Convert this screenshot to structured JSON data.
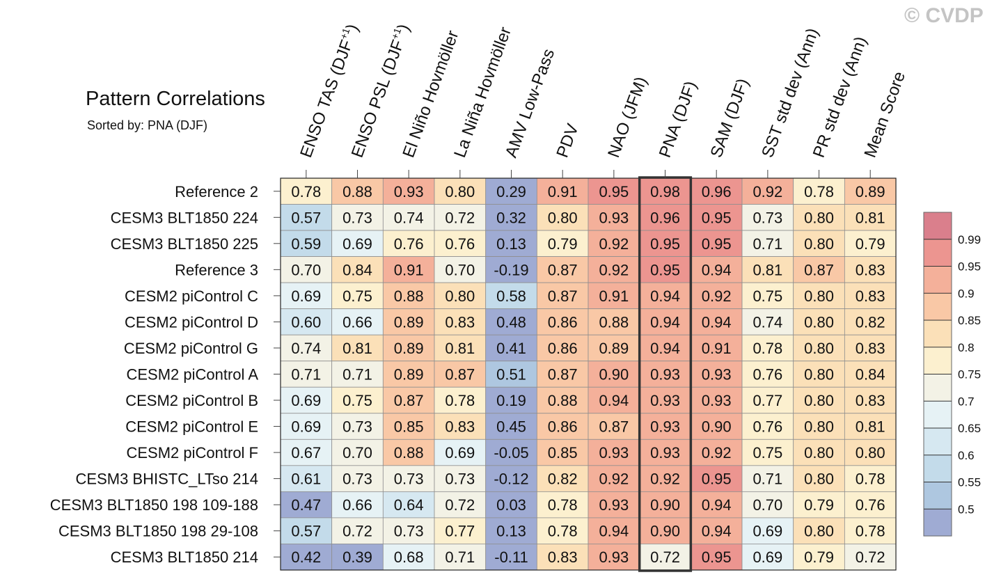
{
  "title": "Pattern Correlations",
  "subtitle": "Sorted by: PNA (DJF)",
  "watermark": "© CVDP",
  "chart_data": {
    "type": "heatmap",
    "title": "Pattern Correlations",
    "sorted_by": "PNA (DJF)",
    "highlight_column": "PNA (DJF)",
    "columns": [
      {
        "label": "ENSO TAS (DJF",
        "sup": "+1",
        "suffix": ")"
      },
      {
        "label": "ENSO PSL (DJF",
        "sup": "+1",
        "suffix": ")"
      },
      {
        "label": "El Niño Hovmöller"
      },
      {
        "label": "La Niña Hovmöller"
      },
      {
        "label": "AMV Low-Pass"
      },
      {
        "label": "PDV"
      },
      {
        "label": "NAO (JFM)"
      },
      {
        "label": "PNA (DJF)"
      },
      {
        "label": "SAM (DJF)"
      },
      {
        "label": "SST std dev (Ann)"
      },
      {
        "label": "PR std dev (Ann)"
      },
      {
        "label": "Mean Score"
      }
    ],
    "rows": [
      "Reference 2",
      "CESM3 BLT1850 224",
      "CESM3 BLT1850 225",
      "Reference 3",
      "CESM2 piControl C",
      "CESM2 piControl D",
      "CESM2 piControl G",
      "CESM2 piControl A",
      "CESM2 piControl B",
      "CESM2 piControl E",
      "CESM2 piControl F",
      "CESM3 BHISTC_LTso 214",
      "CESM3 BLT1850 198 109-188",
      "CESM3 BLT1850 198 29-108",
      "CESM3 BLT1850 214"
    ],
    "values": [
      [
        "0.78",
        "0.88",
        "0.93",
        "0.80",
        "0.29",
        "0.91",
        "0.95",
        "0.98",
        "0.96",
        "0.92",
        "0.78",
        "0.89"
      ],
      [
        "0.57",
        "0.73",
        "0.74",
        "0.72",
        "0.32",
        "0.80",
        "0.93",
        "0.96",
        "0.95",
        "0.73",
        "0.80",
        "0.81"
      ],
      [
        "0.59",
        "0.69",
        "0.76",
        "0.76",
        "0.13",
        "0.79",
        "0.92",
        "0.95",
        "0.95",
        "0.71",
        "0.80",
        "0.79"
      ],
      [
        "0.70",
        "0.84",
        "0.91",
        "0.70",
        "-0.19",
        "0.87",
        "0.92",
        "0.95",
        "0.94",
        "0.81",
        "0.87",
        "0.83"
      ],
      [
        "0.69",
        "0.75",
        "0.88",
        "0.80",
        "0.58",
        "0.87",
        "0.91",
        "0.94",
        "0.92",
        "0.75",
        "0.80",
        "0.83"
      ],
      [
        "0.60",
        "0.66",
        "0.89",
        "0.83",
        "0.48",
        "0.86",
        "0.88",
        "0.94",
        "0.94",
        "0.74",
        "0.80",
        "0.82"
      ],
      [
        "0.74",
        "0.81",
        "0.89",
        "0.81",
        "0.41",
        "0.86",
        "0.89",
        "0.94",
        "0.91",
        "0.78",
        "0.80",
        "0.83"
      ],
      [
        "0.71",
        "0.71",
        "0.89",
        "0.87",
        "0.51",
        "0.87",
        "0.90",
        "0.93",
        "0.93",
        "0.76",
        "0.80",
        "0.84"
      ],
      [
        "0.69",
        "0.75",
        "0.87",
        "0.78",
        "0.19",
        "0.88",
        "0.94",
        "0.93",
        "0.93",
        "0.77",
        "0.80",
        "0.83"
      ],
      [
        "0.69",
        "0.73",
        "0.85",
        "0.83",
        "0.45",
        "0.86",
        "0.87",
        "0.93",
        "0.90",
        "0.76",
        "0.80",
        "0.81"
      ],
      [
        "0.67",
        "0.70",
        "0.88",
        "0.69",
        "-0.05",
        "0.85",
        "0.93",
        "0.93",
        "0.92",
        "0.75",
        "0.80",
        "0.80"
      ],
      [
        "0.61",
        "0.73",
        "0.73",
        "0.73",
        "-0.12",
        "0.82",
        "0.92",
        "0.92",
        "0.95",
        "0.71",
        "0.80",
        "0.78"
      ],
      [
        "0.47",
        "0.66",
        "0.64",
        "0.72",
        "0.03",
        "0.78",
        "0.93",
        "0.90",
        "0.94",
        "0.70",
        "0.79",
        "0.76"
      ],
      [
        "0.57",
        "0.72",
        "0.73",
        "0.77",
        "0.13",
        "0.78",
        "0.94",
        "0.90",
        "0.94",
        "0.69",
        "0.80",
        "0.78"
      ],
      [
        "0.42",
        "0.39",
        "0.68",
        "0.71",
        "-0.11",
        "0.83",
        "0.93",
        "0.72",
        "0.95",
        "0.69",
        "0.79",
        "0.72"
      ]
    ],
    "colorbar": {
      "thresholds": [
        0.5,
        0.55,
        0.6,
        0.65,
        0.7,
        0.75,
        0.8,
        0.85,
        0.9,
        0.95,
        0.99
      ],
      "labels": [
        "0.5",
        "0.55",
        "0.6",
        "0.65",
        "0.7",
        "0.75",
        "0.8",
        "0.85",
        "0.9",
        "0.95",
        "0.99"
      ],
      "colors": [
        "#9fabd3",
        "#aec7e0",
        "#c3dbea",
        "#d6e8f1",
        "#e6f2f5",
        "#f3f2e6",
        "#fcf0cf",
        "#fbe0b8",
        "#f9c8a6",
        "#f4b09a",
        "#ec9590",
        "#da7f8c"
      ]
    }
  }
}
